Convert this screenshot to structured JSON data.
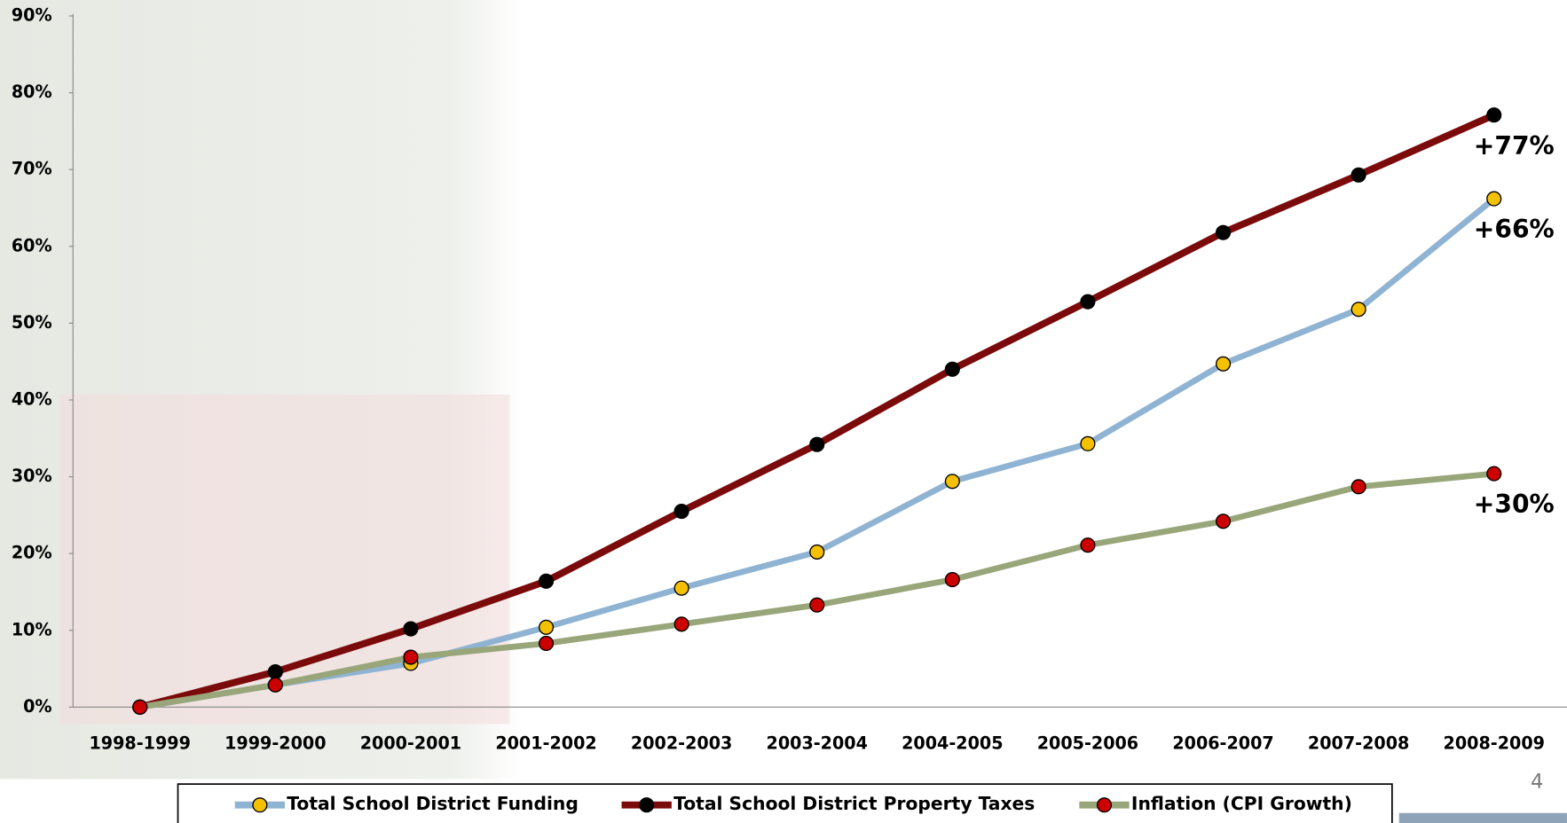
{
  "chart_data": {
    "type": "line",
    "categories": [
      "1998-1999",
      "1999-2000",
      "2000-2001",
      "2001-2002",
      "2002-2003",
      "2003-2004",
      "2004-2005",
      "2005-2006",
      "2006-2007",
      "2007-2008",
      "2008-2009"
    ],
    "series": [
      {
        "name": "Total School District Funding",
        "color": "#8fb3d3",
        "marker_color": "#f5c000",
        "values": [
          0,
          2.9,
          5.7,
          10.4,
          15.5,
          20.2,
          29.4,
          34.3,
          44.7,
          51.8,
          66.2
        ],
        "value_labels": [
          null,
          null,
          null,
          null,
          null,
          null,
          null,
          null,
          null,
          null,
          "+66%"
        ]
      },
      {
        "name": "Total School District Property Taxes",
        "color": "#7b0a0a",
        "marker_color": "#000000",
        "values": [
          0,
          4.6,
          10.2,
          16.4,
          25.5,
          34.2,
          44.0,
          52.8,
          61.8,
          69.3,
          77.1
        ],
        "value_labels": [
          null,
          null,
          null,
          null,
          null,
          null,
          null,
          null,
          null,
          null,
          "+77%"
        ]
      },
      {
        "name": "Inflation (CPI Growth)",
        "color": "#98a67a",
        "marker_color": "#cc0000",
        "values": [
          0,
          2.9,
          6.5,
          8.3,
          10.8,
          13.3,
          16.6,
          21.1,
          24.2,
          28.7,
          30.4
        ],
        "value_labels": [
          null,
          null,
          null,
          null,
          null,
          null,
          null,
          null,
          null,
          null,
          "+30%"
        ]
      }
    ],
    "ylim": [
      0,
      90
    ],
    "yticks": [
      {
        "value": 0,
        "label": "0%"
      },
      {
        "value": 10,
        "label": "10%"
      },
      {
        "value": 20,
        "label": "20%"
      },
      {
        "value": 30,
        "label": "30%"
      },
      {
        "value": 40,
        "label": "40%"
      },
      {
        "value": 50,
        "label": "50%"
      },
      {
        "value": 60,
        "label": "60%"
      },
      {
        "value": 70,
        "label": "70%"
      },
      {
        "value": 80,
        "label": "80%"
      },
      {
        "value": 90,
        "label": "90%"
      }
    ],
    "page_number": "4"
  }
}
